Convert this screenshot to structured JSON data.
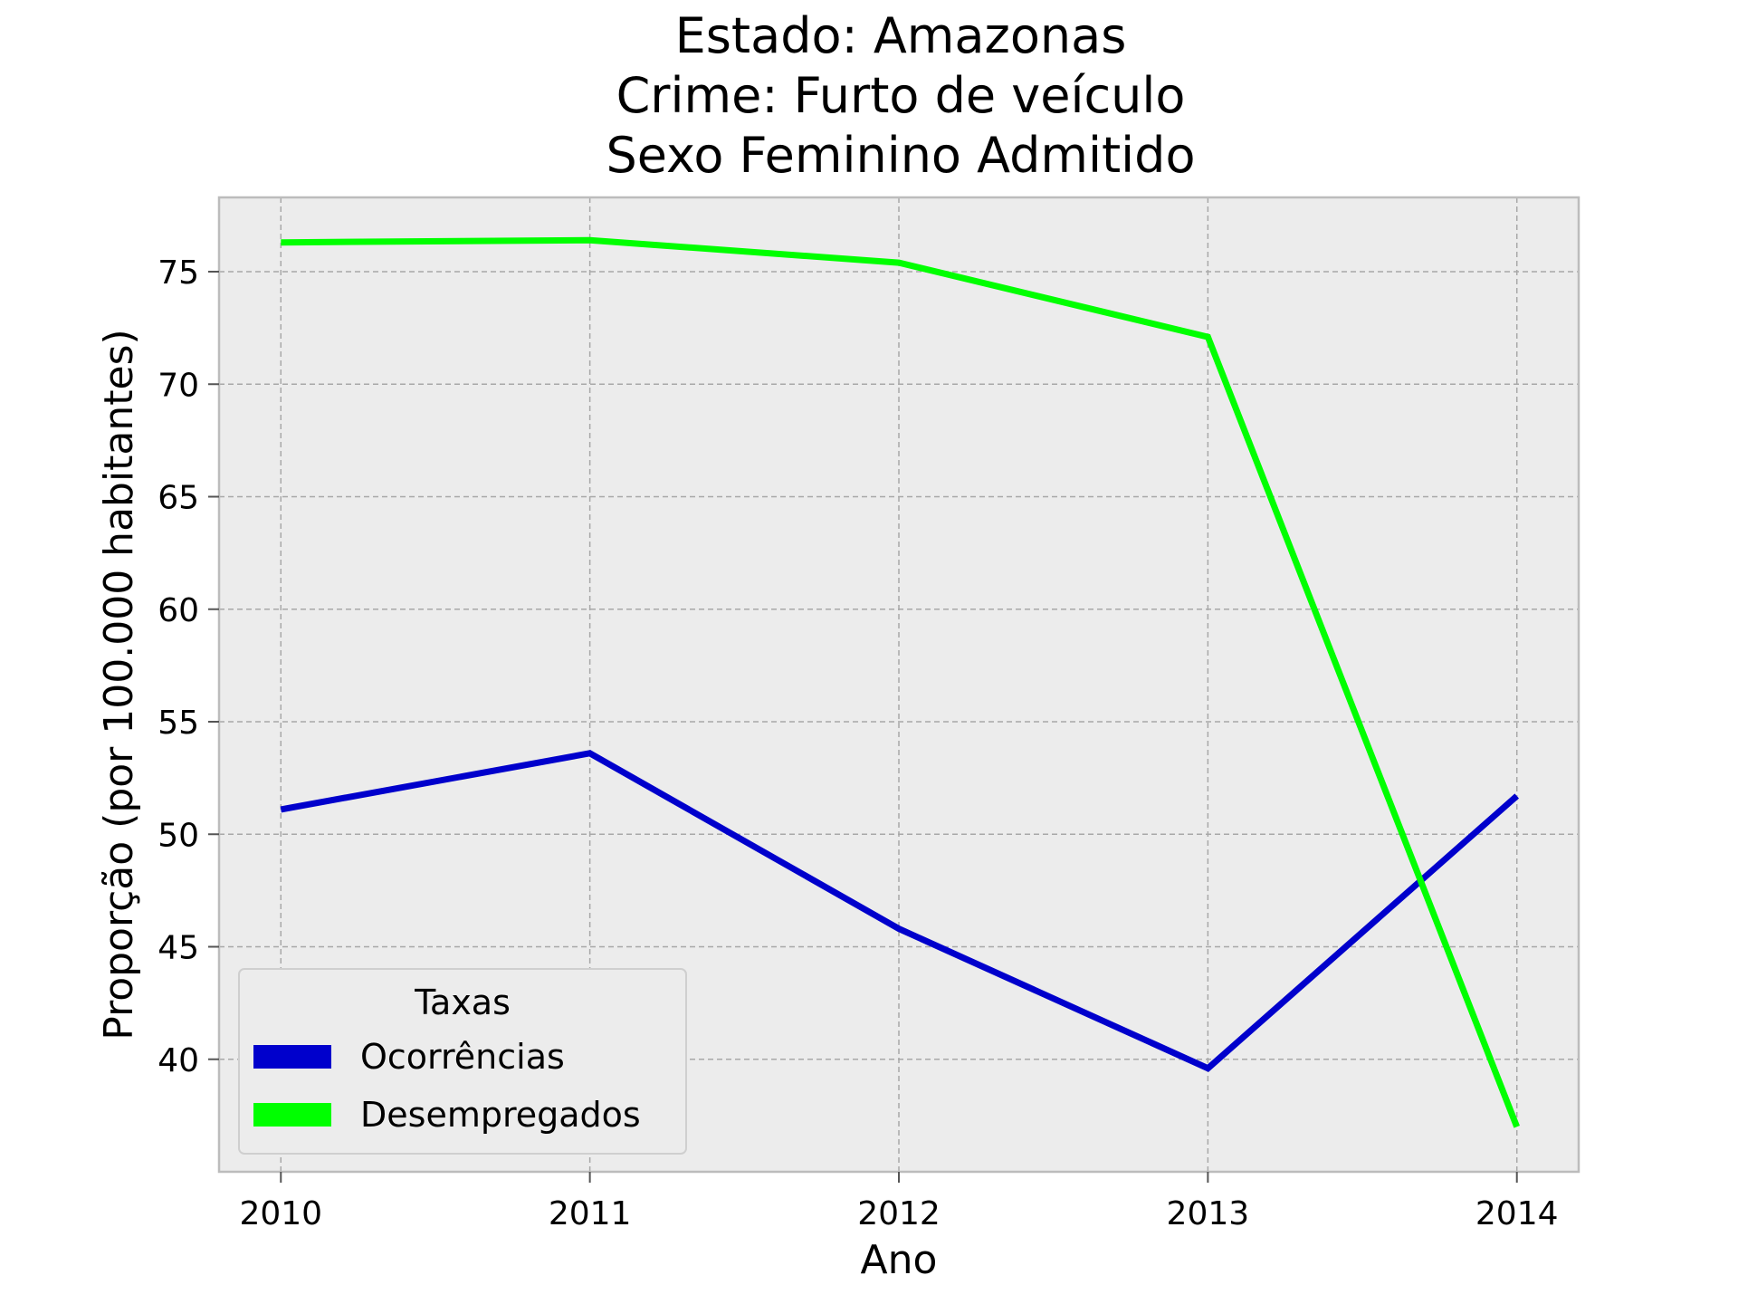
{
  "chart_data": {
    "type": "line",
    "title_lines": [
      "Estado: Amazonas",
      "Crime: Furto de veículo",
      "Sexo  Feminino   Admitido"
    ],
    "xlabel": "Ano",
    "ylabel": "Proporção (por 100.000 habitantes)",
    "x": [
      2010,
      2011,
      2012,
      2013,
      2014
    ],
    "x_tick_labels": [
      "2010",
      "2011",
      "2012",
      "2013",
      "2014"
    ],
    "y_ticks": [
      40,
      45,
      50,
      55,
      60,
      65,
      70,
      75
    ],
    "y_tick_labels": [
      "40",
      "45",
      "50",
      "55",
      "60",
      "65",
      "70",
      "75"
    ],
    "xlim": [
      2009.8,
      2014.2
    ],
    "ylim": [
      35,
      78.3
    ],
    "grid": true,
    "legend": {
      "title": "Taxas",
      "placement": "lower-left"
    },
    "series": [
      {
        "name": "Ocorrências",
        "color": "#0000cc",
        "values": [
          51.1,
          53.6,
          45.8,
          39.6,
          51.7
        ]
      },
      {
        "name": "Desempregados",
        "color": "#00ff00",
        "values": [
          76.3,
          76.4,
          75.4,
          72.1,
          37.0
        ]
      }
    ],
    "background_color": "#ececec",
    "grid_color": "#a8a8a8",
    "frame_color": "#bcbcbc"
  }
}
